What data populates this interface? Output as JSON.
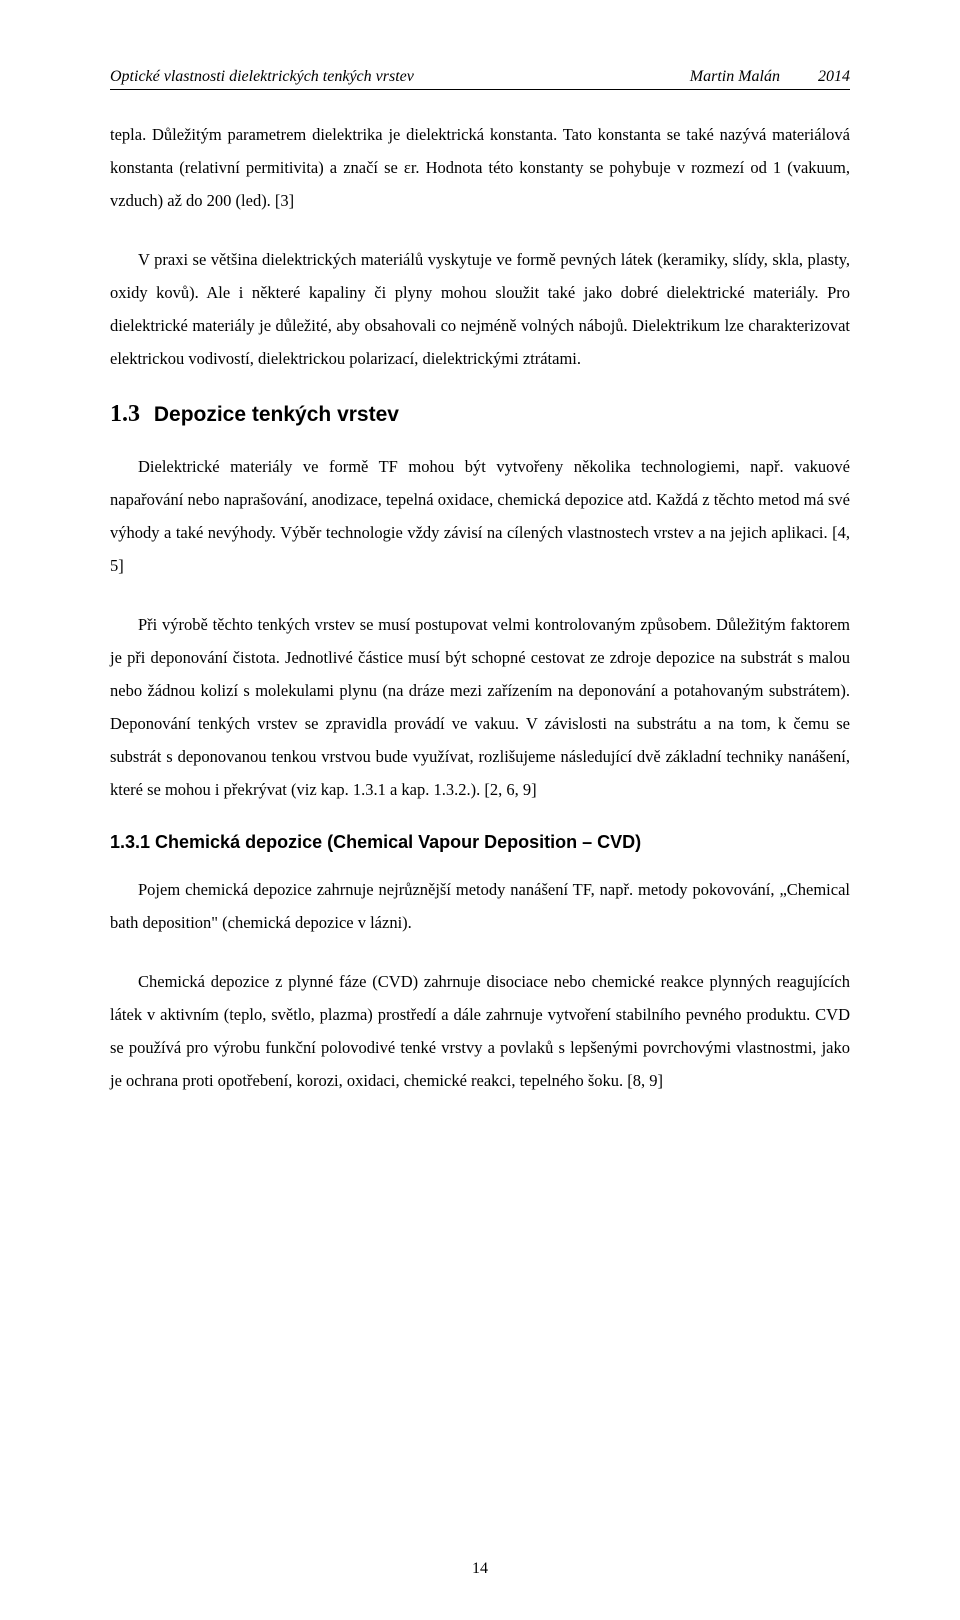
{
  "header": {
    "left": "Optické vlastnosti dielektrických tenkých vrstev",
    "author": "Martin Malán",
    "year": "2014"
  },
  "paragraphs": {
    "p1": "tepla. Důležitým parametrem dielektrika je dielektrická konstanta. Tato konstanta se také nazývá materiálová konstanta (relativní permitivita) a značí se εr. Hodnota této konstanty se pohybuje v rozmezí od 1 (vakuum, vzduch) až do 200 (led). [3]",
    "p2": "V praxi se většina dielektrických materiálů vyskytuje ve formě pevných látek (keramiky, slídy, skla, plasty, oxidy kovů). Ale i některé kapaliny či plyny mohou sloužit také jako dobré dielektrické materiály. Pro dielektrické materiály je důležité, aby obsahovali co nejméně volných nábojů. Dielektrikum lze charakterizovat elektrickou vodivostí, dielektrickou polarizací, dielektrickými ztrátami.",
    "p3": "Dielektrické materiály ve formě TF mohou být vytvořeny několika technologiemi, např. vakuové napařování nebo naprašování, anodizace, tepelná oxidace, chemická depozice atd. Každá z těchto metod má své výhody a také nevýhody. Výběr technologie vždy závisí na cílených vlastnostech vrstev a na jejich aplikaci. [4, 5]",
    "p4": "Při výrobě těchto tenkých vrstev se musí postupovat velmi kontrolovaným způsobem. Důležitým faktorem je při deponování čistota. Jednotlivé částice musí být schopné cestovat ze zdroje depozice na substrát s malou nebo žádnou kolizí s molekulami plynu (na dráze mezi zařízením na deponování a potahovaným substrátem). Deponování tenkých vrstev se zpravidla provádí ve vakuu. V závislosti na substrátu a na tom, k čemu se substrát s deponovanou tenkou vrstvou bude využívat, rozlišujeme následující dvě základní techniky nanášení, které se mohou i překrývat (viz kap. 1.3.1 a kap. 1.3.2.). [2, 6, 9]",
    "p5": "Pojem chemická depozice zahrnuje nejrůznější metody nanášení TF, např. metody pokovování, „Chemical bath deposition\" (chemická depozice v lázni).",
    "p6": "Chemická depozice z plynné fáze (CVD) zahrnuje disociace nebo chemické reakce plynných reagujících látek v aktivním (teplo, světlo, plazma) prostředí a dále zahrnuje vytvoření stabilního pevného produktu. CVD se používá pro výrobu funkční polovodivé tenké vrstvy a povlaků s lepšenými povrchovými vlastnostmi, jako je ochrana proti opotřebení, korozi, oxidaci, chemické reakci, tepelného šoku. [8, 9]"
  },
  "headings": {
    "s13_num": "1.3",
    "s13_title": "Depozice tenkých vrstev",
    "s131": "1.3.1  Chemická depozice (Chemical Vapour Deposition – CVD)"
  },
  "page_number": "14"
}
